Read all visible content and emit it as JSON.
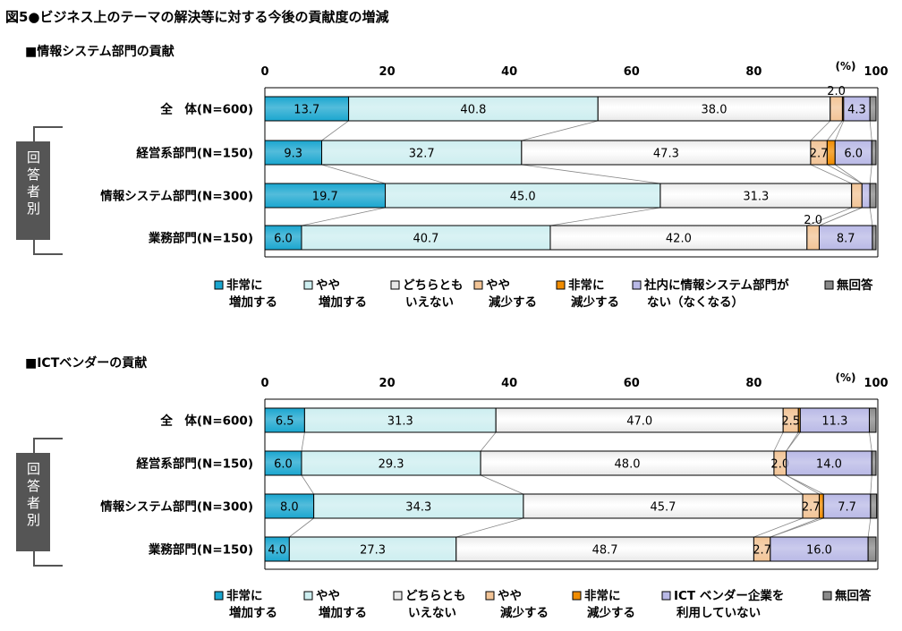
{
  "title": "図5●ビジネス上のテーマの解決等に対する今後の貢献度の増減",
  "side_label": "回答者別",
  "colors": [
    "#1aa6cf",
    "#cdeef0",
    "#e8e8e8",
    "#f2c496",
    "#f08c00",
    "#b9b9e6",
    "#8a8a8a"
  ],
  "chart_data": [
    {
      "type": "bar",
      "orientation": "horizontal-stacked",
      "title": "■情報システム部門の貢献",
      "unit_label": "(%)",
      "xlim": [
        0,
        100
      ],
      "ticks": [
        "0",
        "20",
        "40",
        "60",
        "80",
        "100"
      ],
      "categories": [
        "全　体(N=600)",
        "経営系部門(N=150)",
        "情報システム部門(N=300)",
        "業務部門(N=150)"
      ],
      "series": [
        {
          "name": "非常に増加する",
          "legend": [
            "非常に",
            "増加する"
          ],
          "values": [
            13.7,
            9.3,
            19.7,
            6.0
          ]
        },
        {
          "name": "やや増加する",
          "legend": [
            "やや",
            "増加する"
          ],
          "values": [
            40.8,
            32.7,
            45.0,
            40.7
          ]
        },
        {
          "name": "どちらともいえない",
          "legend": [
            "どちらとも",
            "いえない"
          ],
          "values": [
            38.0,
            47.3,
            31.3,
            42.0
          ]
        },
        {
          "name": "やや減少する",
          "legend": [
            "やや",
            "減少する"
          ],
          "values": [
            2.0,
            2.7,
            1.7,
            2.0
          ]
        },
        {
          "name": "非常に減少する",
          "legend": [
            "非常に",
            "減少する"
          ],
          "values": [
            0.2,
            1.3,
            0.0,
            0.0
          ]
        },
        {
          "name": "社内に情報システム部門がない(なくなる)",
          "legend": [
            "社内に情報システム部門が",
            "ない（なくなる）"
          ],
          "values": [
            4.3,
            6.0,
            1.3,
            8.7
          ]
        },
        {
          "name": "無回答",
          "legend": [
            "無回答",
            ""
          ],
          "values": [
            1.0,
            0.7,
            1.0,
            0.6
          ]
        }
      ],
      "labels": [
        [
          "13.7",
          "40.8",
          "38.0",
          "2.0",
          "",
          "4.3",
          ""
        ],
        [
          "9.3",
          "32.7",
          "47.3",
          "2.7",
          "",
          "6.0",
          ""
        ],
        [
          "19.7",
          "45.0",
          "31.3",
          "",
          "",
          "",
          ""
        ],
        [
          "6.0",
          "40.7",
          "42.0",
          "2.0",
          "",
          "8.7",
          ""
        ]
      ]
    },
    {
      "type": "bar",
      "orientation": "horizontal-stacked",
      "title": "■ICTベンダーの貢献",
      "unit_label": "(%)",
      "xlim": [
        0,
        100
      ],
      "ticks": [
        "0",
        "20",
        "40",
        "60",
        "80",
        "100"
      ],
      "categories": [
        "全　体(N=600)",
        "経営系部門(N=150)",
        "情報システム部門(N=300)",
        "業務部門(N=150)"
      ],
      "series": [
        {
          "name": "非常に増加する",
          "legend": [
            "非常に",
            "増加する"
          ],
          "values": [
            6.5,
            6.0,
            8.0,
            4.0
          ]
        },
        {
          "name": "やや増加する",
          "legend": [
            "やや",
            "増加する"
          ],
          "values": [
            31.3,
            29.3,
            34.3,
            27.3
          ]
        },
        {
          "name": "どちらともいえない",
          "legend": [
            "どちらとも",
            "いえない"
          ],
          "values": [
            47.0,
            48.0,
            45.7,
            48.7
          ]
        },
        {
          "name": "やや減少する",
          "legend": [
            "やや",
            "減少する"
          ],
          "values": [
            2.5,
            2.0,
            2.7,
            2.7
          ]
        },
        {
          "name": "非常に減少する",
          "legend": [
            "非常に",
            "減少する"
          ],
          "values": [
            0.3,
            0.0,
            0.7,
            0.0
          ]
        },
        {
          "name": "ICTベンダー企業を利用していない",
          "legend": [
            "ICT ベンダー企業を",
            "利用していない"
          ],
          "values": [
            11.3,
            14.0,
            7.7,
            16.0
          ]
        },
        {
          "name": "無回答",
          "legend": [
            "無回答",
            ""
          ],
          "values": [
            1.1,
            0.7,
            1.0,
            1.3
          ]
        }
      ],
      "labels": [
        [
          "6.5",
          "31.3",
          "47.0",
          "2.5",
          "",
          "11.3",
          ""
        ],
        [
          "6.0",
          "29.3",
          "48.0",
          "2.0",
          "",
          "14.0",
          ""
        ],
        [
          "8.0",
          "34.3",
          "45.7",
          "2.7",
          "",
          "7.7",
          ""
        ],
        [
          "4.0",
          "27.3",
          "48.7",
          "2.7",
          "",
          "16.0",
          ""
        ]
      ]
    }
  ]
}
